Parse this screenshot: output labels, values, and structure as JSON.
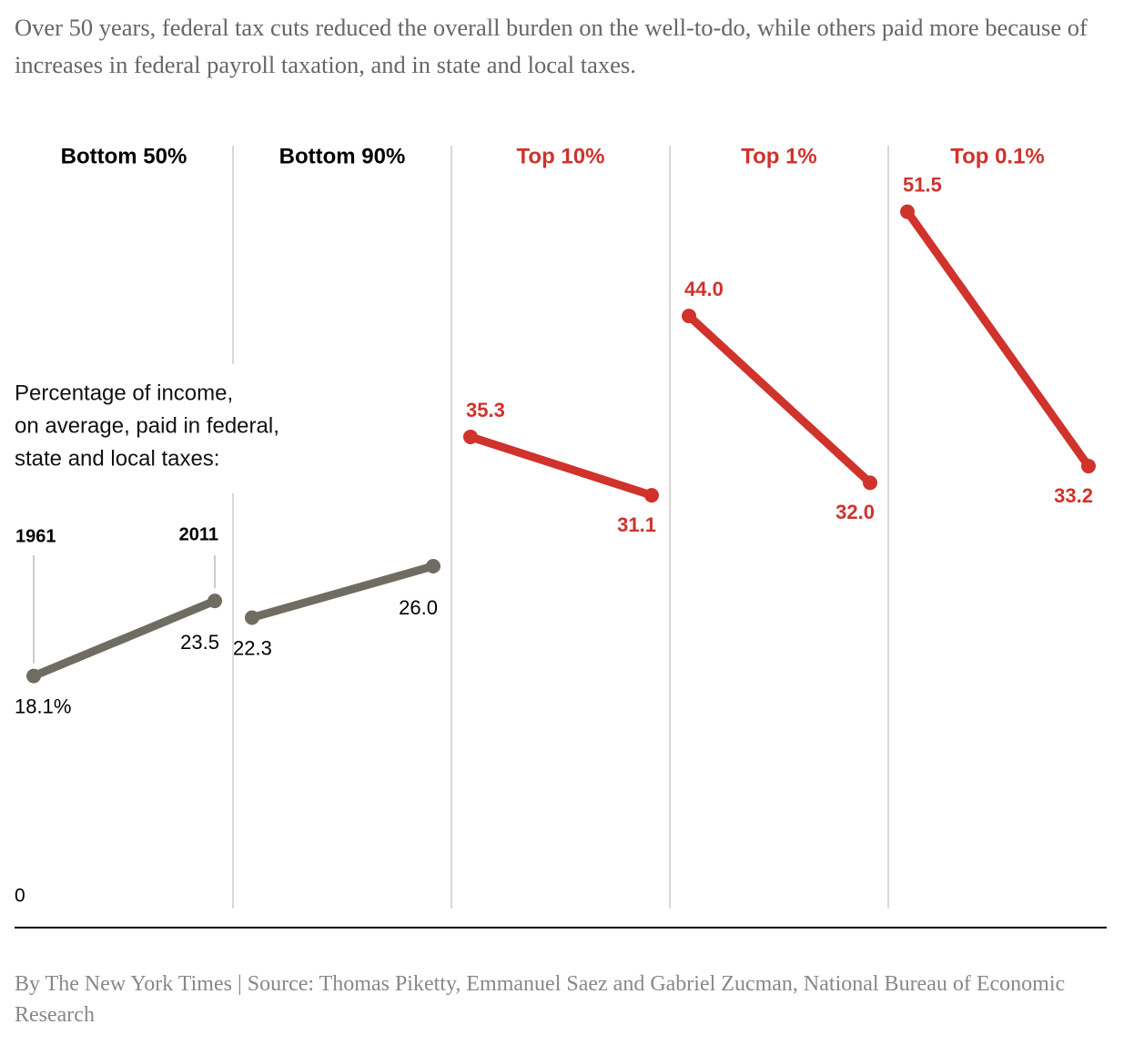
{
  "chart_data": {
    "type": "slope",
    "subtitle": "Over 50 years, federal tax cuts reduced the overall burden on the well-to-do, while others paid more because of increases in federal payroll taxation, and in state and local taxes.",
    "annotation": [
      "Percentage of income,",
      "on average, paid in federal,",
      "state and local taxes:"
    ],
    "x": [
      "1961",
      "2011"
    ],
    "ylim": [
      0,
      55
    ],
    "yticks": [
      0
    ],
    "series": [
      {
        "name": "Bottom 50%",
        "color": "#6f6d62",
        "label_color": "#000000",
        "values": [
          18.1,
          23.5
        ],
        "value_labels": [
          "18.1%",
          "23.5"
        ]
      },
      {
        "name": "Bottom 90%",
        "color": "#6f6d62",
        "label_color": "#000000",
        "values": [
          22.3,
          26.0
        ],
        "value_labels": [
          "22.3",
          "26.0"
        ]
      },
      {
        "name": "Top 10%",
        "color": "#d0322c",
        "label_color": "#d0322c",
        "values": [
          35.3,
          31.1
        ],
        "value_labels": [
          "35.3",
          "31.1"
        ]
      },
      {
        "name": "Top 1%",
        "color": "#d0322c",
        "label_color": "#d0322c",
        "values": [
          44.0,
          32.0
        ],
        "value_labels": [
          "44.0",
          "32.0"
        ]
      },
      {
        "name": "Top 0.1%",
        "color": "#d0322c",
        "label_color": "#d0322c",
        "values": [
          51.5,
          33.2
        ],
        "value_labels": [
          "51.5",
          "33.2"
        ]
      }
    ],
    "source": "By The New York Times | Source: Thomas Piketty, Emmanuel Saez and Gabriel Zucman, National Bureau of Economic Research"
  }
}
